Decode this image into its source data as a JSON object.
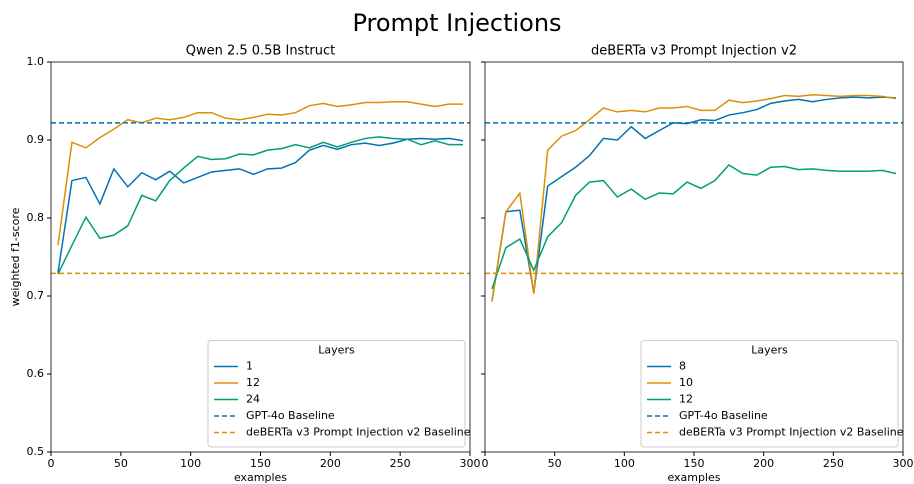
{
  "title": "Prompt Injections",
  "chart_data": [
    {
      "type": "line",
      "title": "Qwen 2.5 0.5B Instruct",
      "xlabel": "examples",
      "ylabel": "weighted f1-score",
      "x": [
        5,
        15,
        25,
        35,
        45,
        55,
        65,
        75,
        85,
        95,
        105,
        115,
        125,
        135,
        145,
        155,
        165,
        175,
        185,
        195,
        205,
        215,
        225,
        235,
        245,
        255,
        265,
        275,
        285,
        295
      ],
      "series": [
        {
          "name": "1",
          "color": "#0173b2",
          "values": [
            0.73,
            0.848,
            0.852,
            0.818,
            0.863,
            0.84,
            0.858,
            0.849,
            0.86,
            0.845,
            0.852,
            0.859,
            0.861,
            0.863,
            0.856,
            0.863,
            0.864,
            0.871,
            0.887,
            0.893,
            0.888,
            0.894,
            0.896,
            0.893,
            0.896,
            0.901,
            0.902,
            0.901,
            0.902,
            0.899
          ]
        },
        {
          "name": "12",
          "color": "#de8f05",
          "values": [
            0.765,
            0.897,
            0.89,
            0.903,
            0.914,
            0.926,
            0.922,
            0.928,
            0.926,
            0.929,
            0.935,
            0.935,
            0.928,
            0.926,
            0.929,
            0.933,
            0.932,
            0.935,
            0.944,
            0.947,
            0.943,
            0.945,
            0.948,
            0.948,
            0.949,
            0.949,
            0.946,
            0.943,
            0.946,
            0.946
          ]
        },
        {
          "name": "24",
          "color": "#029e73",
          "values": [
            0.728,
            0.765,
            0.801,
            0.774,
            0.778,
            0.79,
            0.829,
            0.822,
            0.848,
            0.864,
            0.879,
            0.875,
            0.876,
            0.882,
            0.881,
            0.887,
            0.889,
            0.894,
            0.89,
            0.897,
            0.891,
            0.897,
            0.902,
            0.904,
            0.902,
            0.901,
            0.894,
            0.899,
            0.894,
            0.894
          ]
        }
      ],
      "hlines": [
        {
          "name": "GPT-4o Baseline",
          "color": "#0173b2",
          "value": 0.922
        },
        {
          "name": "deBERTa v3 Prompt Injection v2 Baseline",
          "color": "#de8f05",
          "value": 0.729
        }
      ],
      "legend_title": "Layers",
      "legend": "lower right",
      "xlim": [
        0,
        300
      ],
      "xticks": [
        0,
        50,
        100,
        150,
        200,
        250,
        300
      ],
      "ylim": [
        0.5,
        1
      ],
      "yticks": [
        0.5,
        0.6,
        0.7,
        0.8,
        0.9,
        {
          "value": 1,
          "label": "1.0"
        }
      ],
      "show_ytick_labels": true
    },
    {
      "type": "line",
      "title": "deBERTa v3 Prompt Injection v2",
      "xlabel": "examples",
      "x": [
        5,
        15,
        25,
        35,
        45,
        55,
        65,
        75,
        85,
        95,
        105,
        115,
        125,
        135,
        145,
        155,
        165,
        175,
        185,
        195,
        205,
        215,
        225,
        235,
        245,
        255,
        265,
        275,
        285,
        295
      ],
      "series": [
        {
          "name": "8",
          "color": "#0173b2",
          "values": [
            0.693,
            0.808,
            0.81,
            0.704,
            0.841,
            0.853,
            0.865,
            0.88,
            0.902,
            0.9,
            0.917,
            0.902,
            0.912,
            0.922,
            0.921,
            0.926,
            0.925,
            0.932,
            0.935,
            0.939,
            0.947,
            0.95,
            0.952,
            0.949,
            0.952,
            0.954,
            0.955,
            0.954,
            0.955,
            0.954
          ]
        },
        {
          "name": "10",
          "color": "#de8f05",
          "values": [
            0.693,
            0.808,
            0.832,
            0.703,
            0.887,
            0.905,
            0.912,
            0.926,
            0.941,
            0.936,
            0.938,
            0.936,
            0.941,
            0.941,
            0.943,
            0.938,
            0.938,
            0.951,
            0.948,
            0.95,
            0.953,
            0.957,
            0.956,
            0.958,
            0.957,
            0.956,
            0.957,
            0.957,
            0.956,
            0.953
          ]
        },
        {
          "name": "12",
          "color": "#029e73",
          "values": [
            0.709,
            0.762,
            0.773,
            0.733,
            0.776,
            0.794,
            0.829,
            0.846,
            0.848,
            0.827,
            0.837,
            0.824,
            0.832,
            0.831,
            0.846,
            0.838,
            0.848,
            0.868,
            0.857,
            0.855,
            0.865,
            0.866,
            0.862,
            0.863,
            0.861,
            0.86,
            0.86,
            0.86,
            0.861,
            0.857
          ]
        }
      ],
      "hlines": [
        {
          "name": "GPT-4o Baseline",
          "color": "#0173b2",
          "value": 0.922
        },
        {
          "name": "deBERTa v3 Prompt Injection v2 Baseline",
          "color": "#de8f05",
          "value": 0.729
        }
      ],
      "legend_title": "Layers",
      "legend": "lower right",
      "xlim": [
        0,
        300
      ],
      "xticks": [
        0,
        50,
        100,
        150,
        200,
        250,
        300
      ],
      "ylim": [
        0.5,
        1
      ],
      "yticks": [
        0.5,
        0.6,
        0.7,
        0.8,
        0.9,
        {
          "value": 1,
          "label": "1.0"
        }
      ],
      "show_ytick_labels": false
    }
  ]
}
